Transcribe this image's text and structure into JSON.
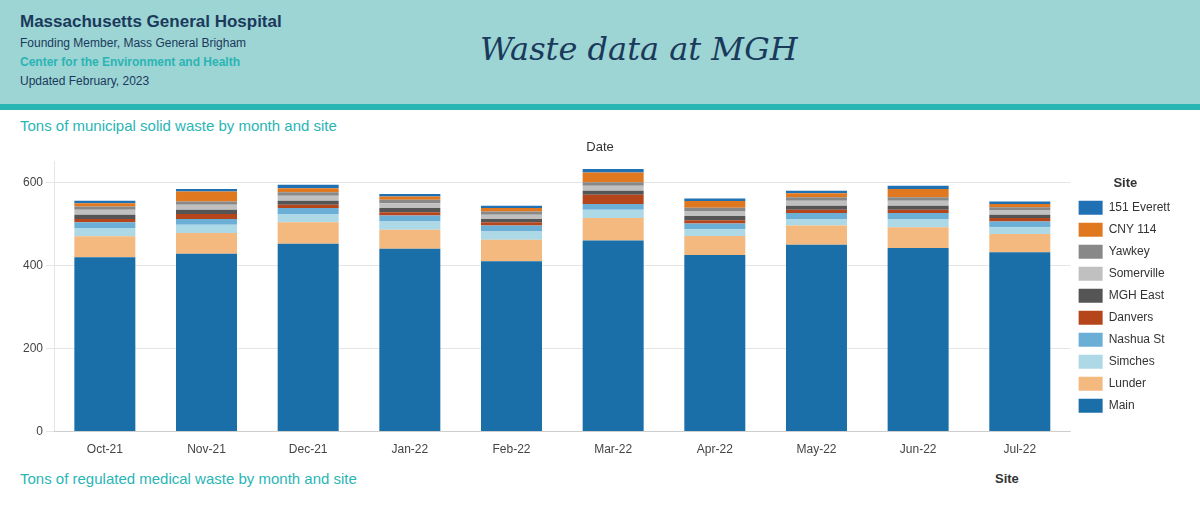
{
  "chart_data": {
    "type": "bar",
    "stacked": true,
    "title": "Waste data at MGH",
    "subtitle": "Tons of municipal solid waste by month and site",
    "xlabel": "Date",
    "legend_title": "Site",
    "annotations": [
      "Massachusetts General Hospital",
      "Founding Member, Mass General Brigham",
      "Center for the Environment and Health",
      "Updated February, 2023",
      "Tons of regulated medical waste by month and site",
      "Site"
    ],
    "categories": [
      "Oct-21",
      "Nov-21",
      "Dec-21",
      "Jan-22",
      "Feb-22",
      "Mar-22",
      "Apr-22",
      "May-22",
      "Jun-22",
      "Jul-22"
    ],
    "series": [
      {
        "name": "Main",
        "color": "#1a6fa8",
        "values": [
          420,
          428,
          452,
          440,
          410,
          460,
          425,
          450,
          442,
          432
        ]
      },
      {
        "name": "Lunder",
        "color": "#f4b97f",
        "values": [
          50,
          50,
          52,
          46,
          52,
          54,
          46,
          46,
          50,
          44
        ]
      },
      {
        "name": "Simches",
        "color": "#add8e6",
        "values": [
          20,
          20,
          20,
          20,
          20,
          20,
          16,
          16,
          20,
          16
        ]
      },
      {
        "name": "Nashua St",
        "color": "#6baed6",
        "values": [
          14,
          14,
          14,
          14,
          14,
          14,
          14,
          14,
          14,
          14
        ]
      },
      {
        "name": "Danvers",
        "color": "#b5451b",
        "values": [
          8,
          12,
          8,
          8,
          8,
          22,
          8,
          8,
          8,
          8
        ]
      },
      {
        "name": "MGH East",
        "color": "#555555",
        "values": [
          10,
          10,
          10,
          10,
          8,
          10,
          10,
          10,
          10,
          8
        ]
      },
      {
        "name": "Somerville",
        "color": "#c0c0c0",
        "values": [
          12,
          12,
          12,
          12,
          10,
          12,
          12,
          12,
          12,
          10
        ]
      },
      {
        "name": "Yawkey",
        "color": "#888888",
        "values": [
          8,
          8,
          8,
          8,
          8,
          8,
          8,
          8,
          8,
          8
        ]
      },
      {
        "name": "CNY 114",
        "color": "#e07820",
        "values": [
          8,
          24,
          10,
          8,
          8,
          24,
          16,
          10,
          20,
          8
        ]
      },
      {
        "name": "151 Everett",
        "color": "#2070b4",
        "values": [
          6,
          6,
          8,
          6,
          6,
          8,
          6,
          6,
          8,
          6
        ]
      }
    ],
    "ylim": [
      0,
      650
    ],
    "yticks": [
      0,
      200,
      400,
      600
    ],
    "grid": true,
    "legend": "right"
  }
}
